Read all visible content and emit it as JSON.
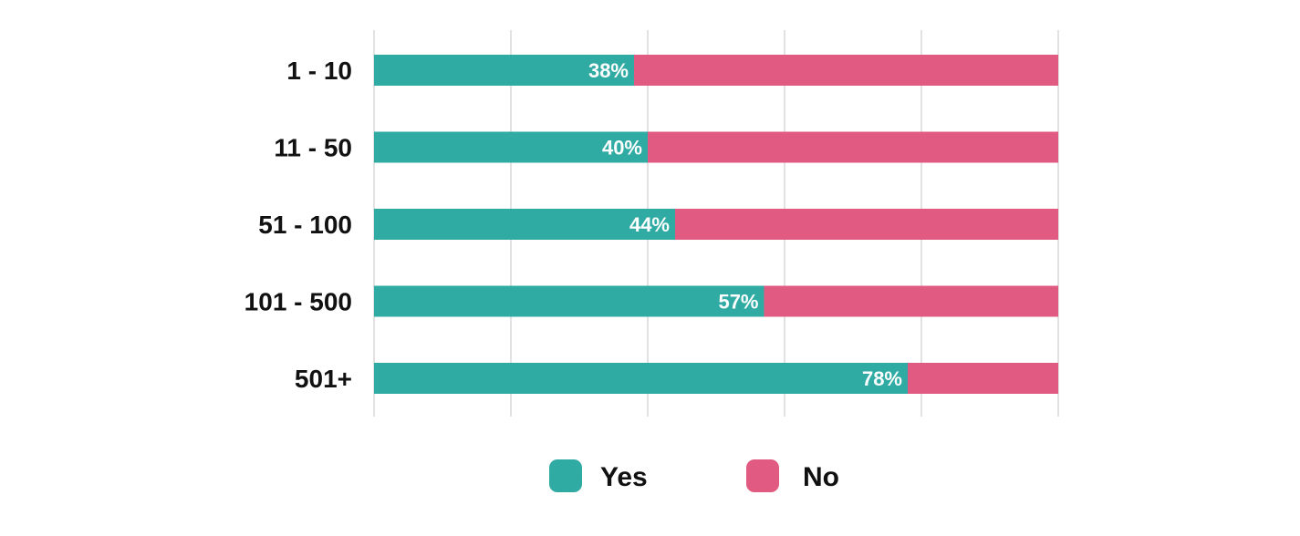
{
  "chart_data": {
    "type": "bar",
    "orientation": "horizontal",
    "stacked": true,
    "percent_stacked": true,
    "categories": [
      "1 - 10",
      "11 - 50",
      "51 - 100",
      "101 - 500",
      "501+"
    ],
    "series": [
      {
        "name": "Yes",
        "values": [
          38,
          40,
          44,
          57,
          78
        ],
        "color": "#30aba3",
        "show_labels": true
      },
      {
        "name": "No",
        "values": [
          62,
          60,
          56,
          43,
          22
        ],
        "color": "#e05a82",
        "show_labels": false
      }
    ],
    "value_label_suffix": "%",
    "xlim": [
      0,
      100
    ],
    "grid": true,
    "legend_position": "bottom",
    "title": "",
    "xlabel": "",
    "ylabel": ""
  }
}
